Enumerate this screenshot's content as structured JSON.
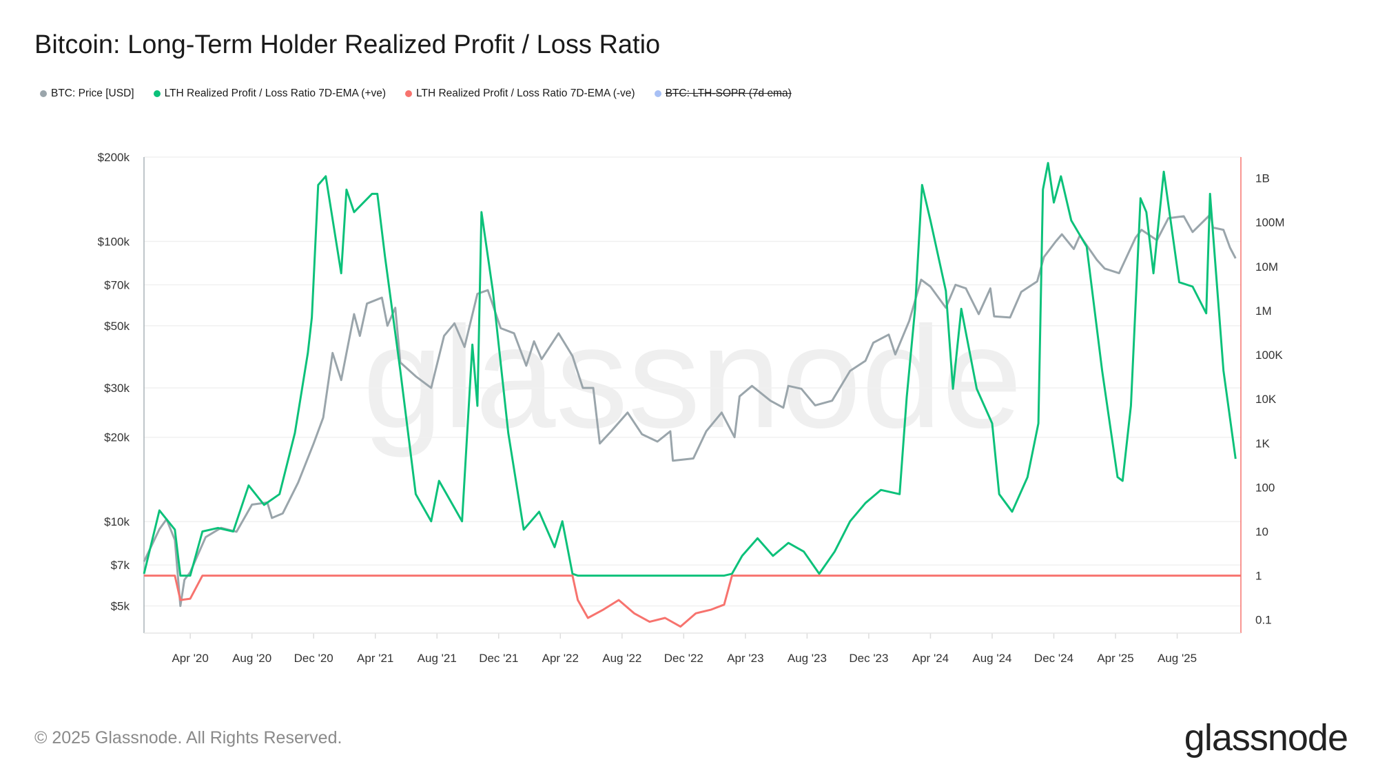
{
  "title": "Bitcoin: Long-Term Holder Realized Profit / Loss Ratio",
  "legend": [
    {
      "label": "BTC: Price [USD]",
      "color": "#9aa5ab",
      "disabled": false
    },
    {
      "label": "LTH Realized Profit / Loss Ratio 7D-EMA (+ve)",
      "color": "#0cc17a",
      "disabled": false
    },
    {
      "label": "LTH Realized Profit / Loss Ratio 7D-EMA (-ve)",
      "color": "#f7736e",
      "disabled": false
    },
    {
      "label": "BTC: LTH-SOPR (7d ema)",
      "color": "#a8c0f5",
      "disabled": true
    }
  ],
  "footer": "© 2025 Glassnode. All Rights Reserved.",
  "logo": "glassnode",
  "watermark": "glassnode",
  "chart_data": {
    "type": "line",
    "title": "Bitcoin: Long-Term Holder Realized Profit / Loss Ratio",
    "x_range": [
      "2020-01-01",
      "2025-12-05"
    ],
    "x_ticks": [
      "Apr '20",
      "Aug '20",
      "Dec '20",
      "Apr '21",
      "Aug '21",
      "Dec '21",
      "Apr '22",
      "Aug '22",
      "Dec '22",
      "Apr '23",
      "Aug '23",
      "Dec '23",
      "Apr '24",
      "Aug '24",
      "Dec '24",
      "Apr '25",
      "Aug '25"
    ],
    "x_tick_dates": [
      "2020-04-01",
      "2020-08-01",
      "2020-12-01",
      "2021-04-01",
      "2021-08-01",
      "2021-12-01",
      "2022-04-01",
      "2022-08-01",
      "2022-12-01",
      "2023-04-01",
      "2023-08-01",
      "2023-12-01",
      "2024-04-01",
      "2024-08-01",
      "2024-12-01",
      "2025-04-01",
      "2025-08-01"
    ],
    "left_axis": {
      "scale": "log",
      "range": [
        4000,
        200000
      ],
      "ticks": [
        200000,
        100000,
        70000,
        50000,
        30000,
        20000,
        10000,
        7000,
        5000
      ],
      "tick_labels": [
        "$200k",
        "$100k",
        "$70k",
        "$50k",
        "$30k",
        "$20k",
        "$10k",
        "$7k",
        "$5k"
      ]
    },
    "right_axis": {
      "scale": "log",
      "range": [
        0.05,
        3000000000
      ],
      "ticks": [
        1000000000.0,
        100000000.0,
        10000000.0,
        1000000.0,
        100000.0,
        10000.0,
        1000.0,
        100,
        10,
        1,
        0.1
      ],
      "tick_labels": [
        "1B",
        "100M",
        "10M",
        "1M",
        "100K",
        "10K",
        "1K",
        "100",
        "10",
        "1",
        "0.1"
      ]
    },
    "grid": true,
    "legend_placement": "top-left",
    "price": [
      [
        "2020-01-01",
        7200
      ],
      [
        "2020-02-01",
        9400
      ],
      [
        "2020-02-15",
        10200
      ],
      [
        "2020-03-01",
        8600
      ],
      [
        "2020-03-12",
        5000
      ],
      [
        "2020-03-20",
        6200
      ],
      [
        "2020-04-01",
        6600
      ],
      [
        "2020-05-01",
        8800
      ],
      [
        "2020-06-01",
        9500
      ],
      [
        "2020-07-01",
        9200
      ],
      [
        "2020-08-01",
        11500
      ],
      [
        "2020-09-01",
        11700
      ],
      [
        "2020-09-10",
        10300
      ],
      [
        "2020-10-01",
        10700
      ],
      [
        "2020-11-01",
        13800
      ],
      [
        "2020-12-01",
        19000
      ],
      [
        "2020-12-20",
        23500
      ],
      [
        "2021-01-08",
        40000
      ],
      [
        "2021-01-25",
        32000
      ],
      [
        "2021-02-20",
        55000
      ],
      [
        "2021-03-01",
        46000
      ],
      [
        "2021-03-15",
        60000
      ],
      [
        "2021-04-14",
        63000
      ],
      [
        "2021-04-25",
        50000
      ],
      [
        "2021-05-10",
        58000
      ],
      [
        "2021-05-20",
        37000
      ],
      [
        "2021-06-20",
        33000
      ],
      [
        "2021-07-20",
        30000
      ],
      [
        "2021-08-15",
        46000
      ],
      [
        "2021-09-05",
        51000
      ],
      [
        "2021-09-25",
        42000
      ],
      [
        "2021-10-20",
        65000
      ],
      [
        "2021-11-10",
        67000
      ],
      [
        "2021-12-05",
        49000
      ],
      [
        "2022-01-01",
        47000
      ],
      [
        "2022-01-25",
        36000
      ],
      [
        "2022-02-10",
        44000
      ],
      [
        "2022-02-25",
        38000
      ],
      [
        "2022-03-28",
        47000
      ],
      [
        "2022-04-25",
        39000
      ],
      [
        "2022-05-15",
        30000
      ],
      [
        "2022-06-05",
        30000
      ],
      [
        "2022-06-18",
        19000
      ],
      [
        "2022-07-10",
        21000
      ],
      [
        "2022-08-12",
        24500
      ],
      [
        "2022-09-10",
        20500
      ],
      [
        "2022-10-10",
        19300
      ],
      [
        "2022-11-05",
        21000
      ],
      [
        "2022-11-10",
        16500
      ],
      [
        "2022-12-20",
        16800
      ],
      [
        "2023-01-15",
        21000
      ],
      [
        "2023-02-15",
        24500
      ],
      [
        "2023-03-10",
        20000
      ],
      [
        "2023-03-20",
        28000
      ],
      [
        "2023-04-14",
        30500
      ],
      [
        "2023-05-20",
        27000
      ],
      [
        "2023-06-15",
        25500
      ],
      [
        "2023-06-25",
        30500
      ],
      [
        "2023-07-20",
        29800
      ],
      [
        "2023-08-17",
        26000
      ],
      [
        "2023-09-20",
        27000
      ],
      [
        "2023-10-25",
        34500
      ],
      [
        "2023-11-25",
        37500
      ],
      [
        "2023-12-10",
        43500
      ],
      [
        "2024-01-10",
        46500
      ],
      [
        "2024-01-23",
        39500
      ],
      [
        "2024-02-20",
        52000
      ],
      [
        "2024-03-13",
        73000
      ],
      [
        "2024-04-01",
        69000
      ],
      [
        "2024-05-01",
        58000
      ],
      [
        "2024-05-20",
        70000
      ],
      [
        "2024-06-10",
        68000
      ],
      [
        "2024-07-05",
        55000
      ],
      [
        "2024-07-28",
        68000
      ],
      [
        "2024-08-05",
        54000
      ],
      [
        "2024-09-06",
        53500
      ],
      [
        "2024-09-28",
        66000
      ],
      [
        "2024-10-29",
        72000
      ],
      [
        "2024-11-12",
        88000
      ],
      [
        "2024-12-05",
        100000
      ],
      [
        "2024-12-17",
        106000
      ],
      [
        "2025-01-10",
        94000
      ],
      [
        "2025-01-22",
        105000
      ],
      [
        "2025-02-25",
        86000
      ],
      [
        "2025-03-10",
        80000
      ],
      [
        "2025-04-08",
        77000
      ],
      [
        "2025-05-10",
        103000
      ],
      [
        "2025-05-22",
        110000
      ],
      [
        "2025-06-22",
        101000
      ],
      [
        "2025-07-14",
        121000
      ],
      [
        "2025-08-14",
        123000
      ],
      [
        "2025-09-01",
        108000
      ],
      [
        "2025-10-06",
        125000
      ],
      [
        "2025-10-11",
        112000
      ],
      [
        "2025-11-01",
        110000
      ],
      [
        "2025-11-14",
        95000
      ],
      [
        "2025-11-25",
        87000
      ]
    ],
    "ratio_7d_ema": [
      [
        "2020-01-01",
        1.1
      ],
      [
        "2020-02-01",
        30
      ],
      [
        "2020-03-01",
        11
      ],
      [
        "2020-03-12",
        0.28
      ],
      [
        "2020-04-01",
        0.3
      ],
      [
        "2020-04-25",
        10
      ],
      [
        "2020-05-25",
        12
      ],
      [
        "2020-06-25",
        10
      ],
      [
        "2020-07-25",
        110
      ],
      [
        "2020-08-25",
        40
      ],
      [
        "2020-09-25",
        70
      ],
      [
        "2020-10-25",
        1700
      ],
      [
        "2020-11-20",
        110000
      ],
      [
        "2020-11-28",
        700000
      ],
      [
        "2020-12-10",
        700000000
      ],
      [
        "2020-12-25",
        1100000000
      ],
      [
        "2021-01-25",
        7000000
      ],
      [
        "2021-02-05",
        550000000
      ],
      [
        "2021-02-20",
        170000000
      ],
      [
        "2021-03-25",
        440000000
      ],
      [
        "2021-04-05",
        440000000
      ],
      [
        "2021-04-20",
        17000000
      ],
      [
        "2021-05-20",
        44000
      ],
      [
        "2021-06-20",
        70
      ],
      [
        "2021-07-20",
        17
      ],
      [
        "2021-08-05",
        140
      ],
      [
        "2021-08-20",
        70
      ],
      [
        "2021-09-20",
        17
      ],
      [
        "2021-10-10",
        170000
      ],
      [
        "2021-10-20",
        7000
      ],
      [
        "2021-10-28",
        170000000
      ],
      [
        "2021-11-20",
        2800000
      ],
      [
        "2021-12-20",
        1700
      ],
      [
        "2022-01-20",
        11
      ],
      [
        "2022-02-20",
        28
      ],
      [
        "2022-03-20",
        4.4
      ],
      [
        "2022-04-05",
        17
      ],
      [
        "2022-04-25",
        1.1
      ],
      [
        "2022-05-05",
        0.28
      ],
      [
        "2022-05-25",
        0.11
      ],
      [
        "2022-06-25",
        0.17
      ],
      [
        "2022-07-25",
        0.28
      ],
      [
        "2022-08-25",
        0.14
      ],
      [
        "2022-09-25",
        0.09
      ],
      [
        "2022-10-25",
        0.11
      ],
      [
        "2022-11-25",
        0.07
      ],
      [
        "2022-12-25",
        0.14
      ],
      [
        "2023-01-25",
        0.17
      ],
      [
        "2023-02-20",
        0.22
      ],
      [
        "2023-03-05",
        1.1
      ],
      [
        "2023-03-25",
        2.8
      ],
      [
        "2023-04-25",
        7
      ],
      [
        "2023-05-25",
        2.8
      ],
      [
        "2023-06-25",
        5.5
      ],
      [
        "2023-07-25",
        3.5
      ],
      [
        "2023-08-25",
        1.1
      ],
      [
        "2023-09-25",
        3.5
      ],
      [
        "2023-10-25",
        17
      ],
      [
        "2023-11-25",
        44
      ],
      [
        "2023-12-25",
        87
      ],
      [
        "2024-02-01",
        70
      ],
      [
        "2024-02-15",
        11000
      ],
      [
        "2024-03-01",
        1100000
      ],
      [
        "2024-03-15",
        700000000
      ],
      [
        "2024-04-01",
        110000000
      ],
      [
        "2024-05-01",
        2800000
      ],
      [
        "2024-05-15",
        17000
      ],
      [
        "2024-06-01",
        1100000
      ],
      [
        "2024-07-01",
        17000
      ],
      [
        "2024-08-01",
        2800
      ],
      [
        "2024-08-15",
        70
      ],
      [
        "2024-09-10",
        28
      ],
      [
        "2024-10-10",
        170
      ],
      [
        "2024-11-01",
        2800
      ],
      [
        "2024-11-10",
        550000000
      ],
      [
        "2024-11-20",
        2200000000
      ],
      [
        "2024-12-01",
        280000000
      ],
      [
        "2024-12-15",
        1100000000
      ],
      [
        "2025-01-05",
        110000000
      ],
      [
        "2025-02-05",
        28000000
      ],
      [
        "2025-03-05",
        44000
      ],
      [
        "2025-04-05",
        170
      ],
      [
        "2025-04-15",
        140
      ],
      [
        "2025-05-01",
        7000
      ],
      [
        "2025-05-20",
        350000000
      ],
      [
        "2025-06-01",
        170000000
      ],
      [
        "2025-06-15",
        7000000
      ],
      [
        "2025-07-05",
        1400000000
      ],
      [
        "2025-08-05",
        4400000
      ],
      [
        "2025-09-01",
        3500000
      ],
      [
        "2025-09-28",
        870000
      ],
      [
        "2025-10-05",
        440000000
      ],
      [
        "2025-11-01",
        44000
      ],
      [
        "2025-11-25",
        440
      ]
    ]
  }
}
